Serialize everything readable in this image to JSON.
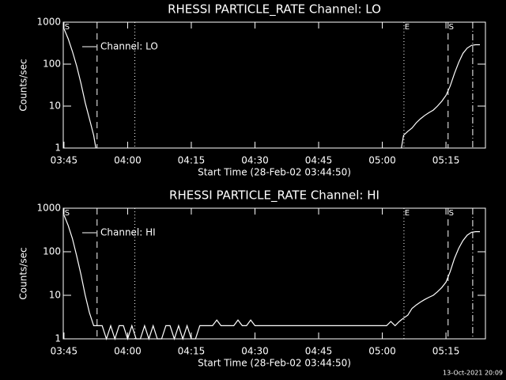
{
  "chart_data": [
    {
      "type": "line",
      "title": "RHESSI PARTICLE_RATE Channel: LO",
      "xlabel": "Start Time (28-Feb-02 03:44:50)",
      "ylabel": "Counts/sec",
      "x": [
        0,
        1,
        2,
        3,
        4,
        5,
        6,
        7,
        7.5,
        8,
        79.5,
        80,
        81,
        82,
        83,
        84,
        85,
        86,
        87,
        88,
        89,
        90,
        91,
        92,
        93,
        94,
        95,
        96,
        97,
        98
      ],
      "series": [
        {
          "name": "Channel: LO",
          "color": "#ffffff",
          "values": [
            700,
            400,
            200,
            90,
            35,
            12,
            5,
            2,
            1,
            null,
            1,
            2,
            2.5,
            3,
            4,
            5,
            6,
            7,
            8,
            10,
            13,
            18,
            30,
            60,
            110,
            180,
            240,
            280,
            290,
            290
          ]
        }
      ],
      "xlim": [
        -0.17,
        99.3
      ],
      "xticks": [
        {
          "value": 0,
          "label": "03:45"
        },
        {
          "value": 15,
          "label": "04:00"
        },
        {
          "value": 30,
          "label": "04:15"
        },
        {
          "value": 45,
          "label": "04:30"
        },
        {
          "value": 60,
          "label": "04:45"
        },
        {
          "value": 75,
          "label": "05:00"
        },
        {
          "value": 90,
          "label": "05:15"
        }
      ],
      "ylim": [
        1,
        1000
      ],
      "yticks": [
        1,
        10,
        100,
        1000
      ],
      "log_y": true,
      "vlines": [
        {
          "x": 7.8,
          "style": "dashed"
        },
        {
          "x": 16.7,
          "style": "dotted"
        },
        {
          "x": 80.1,
          "style": "dotted"
        },
        {
          "x": 90.5,
          "style": "dashed"
        },
        {
          "x": 96.3,
          "style": "dashdot"
        }
      ],
      "flags": [
        {
          "x": 0,
          "label": "S"
        },
        {
          "x": 80.1,
          "label": "E"
        },
        {
          "x": 90.5,
          "label": "S"
        }
      ]
    },
    {
      "type": "line",
      "title": "RHESSI PARTICLE_RATE Channel: HI",
      "xlabel": "Start Time (28-Feb-02 03:44:50)",
      "ylabel": "Counts/sec",
      "x": [
        0,
        1,
        2,
        3,
        4,
        5,
        6,
        7,
        8,
        9,
        10,
        11,
        12,
        13,
        14,
        15,
        16,
        17,
        18,
        19,
        20,
        21,
        22,
        23,
        24,
        25,
        26,
        27,
        28,
        29,
        30,
        31,
        32,
        33,
        34,
        35,
        36,
        37,
        38,
        39,
        40,
        41,
        42,
        43,
        44,
        45,
        46,
        47,
        48,
        49,
        50,
        51,
        52,
        53,
        54,
        55,
        56,
        57,
        58,
        59,
        60,
        61,
        62,
        63,
        64,
        65,
        66,
        67,
        68,
        69,
        70,
        71,
        72,
        73,
        74,
        75,
        76,
        77,
        78,
        79,
        80,
        81,
        82,
        83,
        84,
        85,
        86,
        87,
        88,
        89,
        90,
        91,
        92,
        93,
        94,
        95,
        96,
        97,
        98
      ],
      "series": [
        {
          "name": "Channel: HI",
          "color": "#ffffff",
          "values": [
            700,
            400,
            200,
            80,
            30,
            10,
            4,
            2,
            2,
            2,
            1,
            2,
            1,
            2,
            2,
            1,
            2,
            1,
            1,
            2,
            1,
            2,
            1,
            1,
            2,
            2,
            1,
            2,
            1,
            2,
            1,
            1,
            2,
            2,
            2,
            2,
            2.7,
            2,
            2,
            2,
            2,
            2.7,
            2,
            2,
            2.7,
            2,
            2,
            2,
            2,
            2,
            2,
            2,
            2,
            2,
            2,
            2,
            2,
            2,
            2,
            2,
            2,
            2,
            2,
            2,
            2,
            2,
            2,
            2,
            2,
            2,
            2,
            2,
            2,
            2,
            2,
            2,
            2,
            2.5,
            2,
            2.5,
            3,
            3.5,
            5,
            6,
            7,
            8,
            9,
            10,
            12,
            15,
            20,
            35,
            70,
            120,
            180,
            240,
            280,
            290,
            290
          ]
        }
      ],
      "xlim": [
        -0.17,
        99.3
      ],
      "xticks": [
        {
          "value": 0,
          "label": "03:45"
        },
        {
          "value": 15,
          "label": "04:00"
        },
        {
          "value": 30,
          "label": "04:15"
        },
        {
          "value": 45,
          "label": "04:30"
        },
        {
          "value": 60,
          "label": "04:45"
        },
        {
          "value": 75,
          "label": "05:00"
        },
        {
          "value": 90,
          "label": "05:15"
        }
      ],
      "ylim": [
        1,
        1000
      ],
      "yticks": [
        1,
        10,
        100,
        1000
      ],
      "log_y": true,
      "vlines": [
        {
          "x": 7.8,
          "style": "dashed"
        },
        {
          "x": 16.7,
          "style": "dotted"
        },
        {
          "x": 80.1,
          "style": "dotted"
        },
        {
          "x": 90.5,
          "style": "dashed"
        },
        {
          "x": 96.3,
          "style": "dashdot"
        }
      ],
      "flags": [
        {
          "x": 0,
          "label": "S"
        },
        {
          "x": 80.1,
          "label": "E"
        },
        {
          "x": 90.5,
          "label": "S"
        }
      ]
    }
  ],
  "footer": "13-Oct-2021 20:09"
}
